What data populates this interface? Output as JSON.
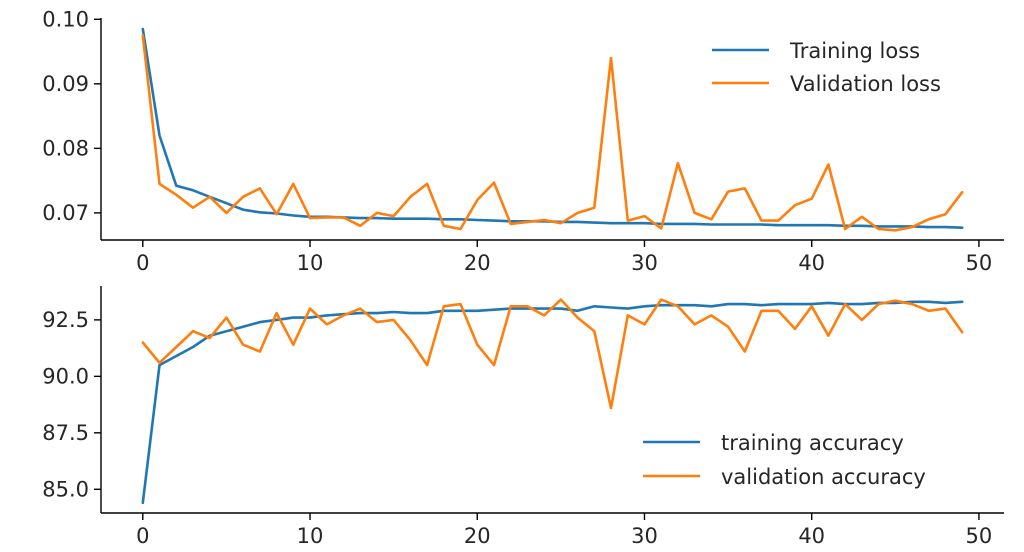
{
  "chart_data": [
    {
      "type": "line",
      "title": "",
      "xlabel": "",
      "ylabel": "",
      "xlim": [
        -2.5,
        51.5
      ],
      "ylim": [
        0.0658,
        0.1002
      ],
      "xticks": [
        0,
        10,
        20,
        30,
        40,
        50
      ],
      "xtick_labels": [
        "0",
        "10",
        "20",
        "30",
        "40",
        "50"
      ],
      "yticks": [
        0.07,
        0.08,
        0.09,
        0.1
      ],
      "ytick_labels": [
        "0.07",
        "0.08",
        "0.09",
        "0.10"
      ],
      "legend": {
        "position": "top-right",
        "entries": [
          "Training loss",
          "Validation loss"
        ]
      },
      "grid": false,
      "x": [
        0,
        1,
        2,
        3,
        4,
        5,
        6,
        7,
        8,
        9,
        10,
        11,
        12,
        13,
        14,
        15,
        16,
        17,
        18,
        19,
        20,
        21,
        22,
        23,
        24,
        25,
        26,
        27,
        28,
        29,
        30,
        31,
        32,
        33,
        34,
        35,
        36,
        37,
        38,
        39,
        40,
        41,
        42,
        43,
        44,
        45,
        46,
        47,
        48,
        49
      ],
      "series": [
        {
          "name": "Training loss",
          "color": "#1f77b4",
          "values": [
            0.0985,
            0.082,
            0.0742,
            0.0735,
            0.0725,
            0.0715,
            0.0705,
            0.0701,
            0.0699,
            0.0696,
            0.0694,
            0.0694,
            0.0693,
            0.0692,
            0.0692,
            0.0691,
            0.0691,
            0.0691,
            0.069,
            0.069,
            0.0689,
            0.0688,
            0.0687,
            0.0687,
            0.0687,
            0.0686,
            0.0686,
            0.0685,
            0.0684,
            0.0684,
            0.0684,
            0.0683,
            0.0683,
            0.0683,
            0.0682,
            0.0682,
            0.0682,
            0.0682,
            0.0681,
            0.0681,
            0.0681,
            0.0681,
            0.068,
            0.068,
            0.0679,
            0.0679,
            0.0679,
            0.0678,
            0.0678,
            0.0677
          ]
        },
        {
          "name": "Validation loss",
          "color": "#ff7f0e",
          "values": [
            0.0975,
            0.0745,
            0.0728,
            0.0708,
            0.0725,
            0.07,
            0.0725,
            0.0738,
            0.0698,
            0.0745,
            0.0692,
            0.0693,
            0.0693,
            0.068,
            0.07,
            0.0695,
            0.0725,
            0.0745,
            0.068,
            0.0675,
            0.072,
            0.0747,
            0.0683,
            0.0686,
            0.0689,
            0.0684,
            0.07,
            0.0708,
            0.094,
            0.0688,
            0.0695,
            0.0676,
            0.0777,
            0.07,
            0.069,
            0.0733,
            0.0738,
            0.0688,
            0.0688,
            0.0712,
            0.0722,
            0.0775,
            0.0675,
            0.0694,
            0.0675,
            0.0673,
            0.0678,
            0.069,
            0.0698,
            0.0732
          ]
        }
      ]
    },
    {
      "type": "line",
      "title": "",
      "xlabel": "",
      "ylabel": "",
      "xlim": [
        -2.5,
        51.5
      ],
      "ylim": [
        83.95,
        94.0
      ],
      "xticks": [
        0,
        10,
        20,
        30,
        40,
        50
      ],
      "xtick_labels": [
        "0",
        "10",
        "20",
        "30",
        "40",
        "50"
      ],
      "yticks": [
        85.0,
        87.5,
        90.0,
        92.5
      ],
      "ytick_labels": [
        "85.0",
        "87.5",
        "90.0",
        "92.5"
      ],
      "legend": {
        "position": "bottom-right",
        "entries": [
          "training accuracy",
          "validation accuracy"
        ]
      },
      "grid": false,
      "x": [
        0,
        1,
        2,
        3,
        4,
        5,
        6,
        7,
        8,
        9,
        10,
        11,
        12,
        13,
        14,
        15,
        16,
        17,
        18,
        19,
        20,
        21,
        22,
        23,
        24,
        25,
        26,
        27,
        28,
        29,
        30,
        31,
        32,
        33,
        34,
        35,
        36,
        37,
        38,
        39,
        40,
        41,
        42,
        43,
        44,
        45,
        46,
        47,
        48,
        49
      ],
      "series": [
        {
          "name": "training accuracy",
          "color": "#1f77b4",
          "values": [
            84.4,
            90.5,
            90.9,
            91.3,
            91.8,
            92.0,
            92.2,
            92.4,
            92.5,
            92.6,
            92.6,
            92.7,
            92.75,
            92.8,
            92.8,
            92.85,
            92.8,
            92.8,
            92.9,
            92.9,
            92.9,
            92.95,
            93.0,
            93.0,
            93.0,
            93.0,
            92.9,
            93.1,
            93.05,
            93.0,
            93.1,
            93.15,
            93.15,
            93.15,
            93.1,
            93.2,
            93.2,
            93.15,
            93.2,
            93.2,
            93.2,
            93.25,
            93.2,
            93.2,
            93.25,
            93.25,
            93.3,
            93.3,
            93.25,
            93.3
          ]
        },
        {
          "name": "validation accuracy",
          "color": "#ff7f0e",
          "values": [
            91.5,
            90.6,
            91.3,
            92.0,
            91.7,
            92.6,
            91.4,
            91.1,
            92.8,
            91.4,
            93.0,
            92.3,
            92.7,
            93.0,
            92.4,
            92.5,
            91.6,
            90.5,
            93.1,
            93.2,
            91.4,
            90.5,
            93.1,
            93.1,
            92.7,
            93.4,
            92.6,
            92.0,
            88.6,
            92.7,
            92.3,
            93.4,
            93.1,
            92.3,
            92.7,
            92.2,
            91.1,
            92.9,
            92.9,
            92.1,
            93.1,
            91.8,
            93.2,
            92.5,
            93.2,
            93.35,
            93.2,
            92.9,
            93.0,
            91.95
          ]
        }
      ]
    }
  ]
}
